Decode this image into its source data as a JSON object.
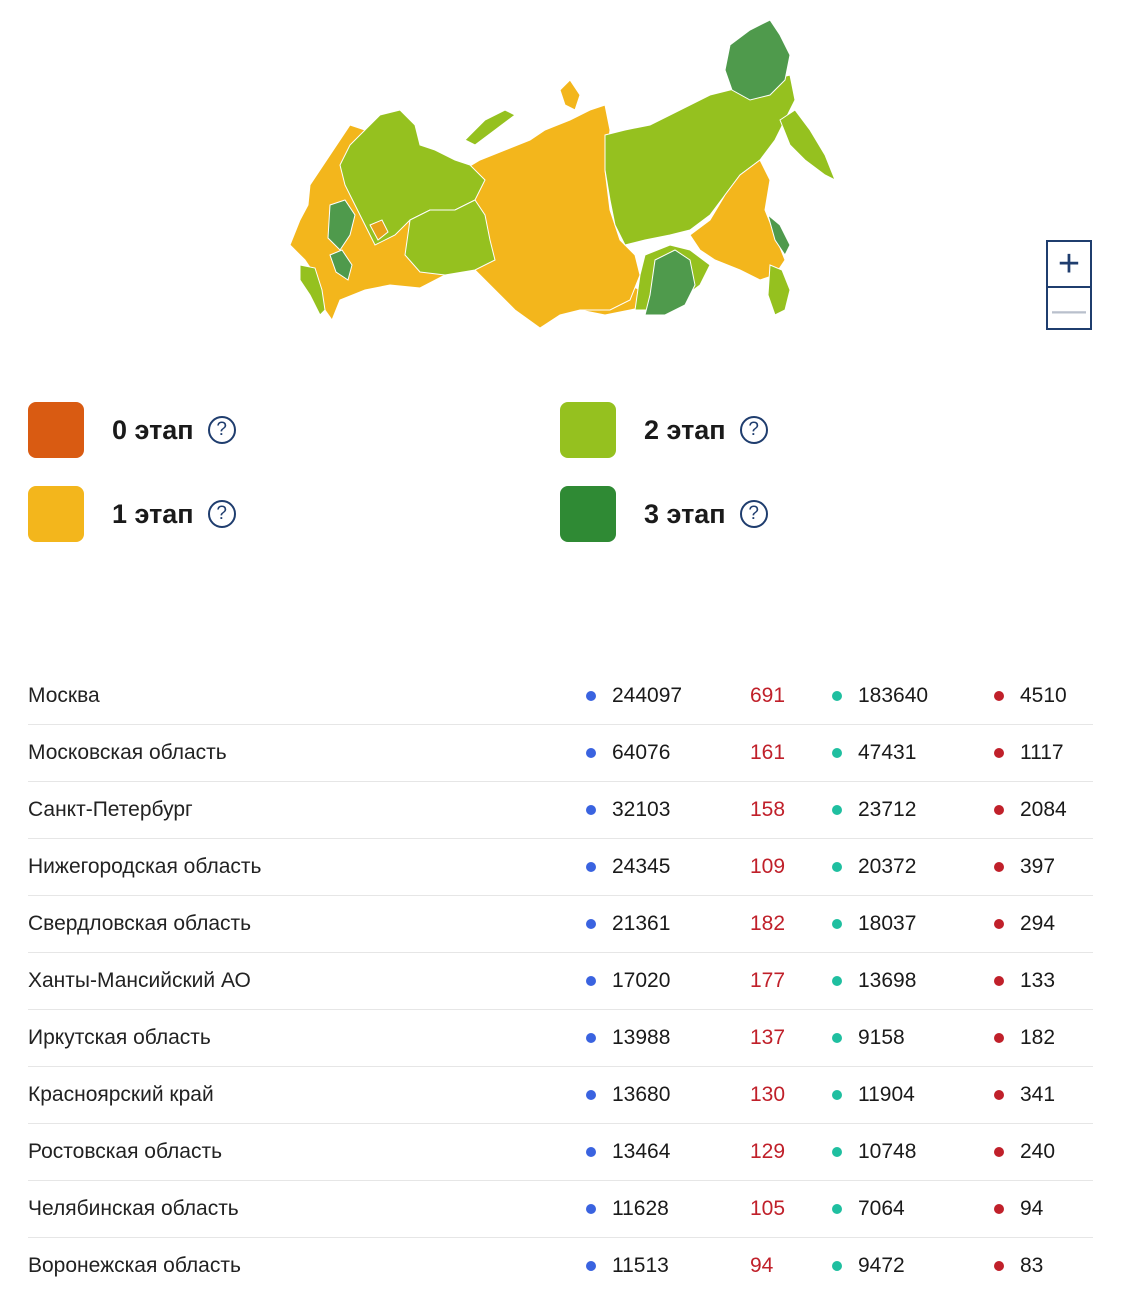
{
  "colors": {
    "stage0": "#d95b12",
    "stage1": "#f3b61c",
    "stage2": "#95c11f",
    "stage3": "#2f8a34",
    "dot_cases": "#3a63e0",
    "dot_recovered": "#1fbfa0",
    "dot_deaths": "#c0202a",
    "new_cases": "#c0202a"
  },
  "map": {
    "icon": "russia-map"
  },
  "zoom": {
    "plus": "+",
    "minus": "—"
  },
  "legend": [
    {
      "label": "0 этап",
      "help": "?"
    },
    {
      "label": "1 этап",
      "help": "?"
    },
    {
      "label": "2 этап",
      "help": "?"
    },
    {
      "label": "3 этап",
      "help": "?"
    }
  ],
  "regions": [
    {
      "name": "Москва",
      "cases": "244097",
      "new": "691",
      "recovered": "183640",
      "deaths": "4510"
    },
    {
      "name": "Московская область",
      "cases": "64076",
      "new": "161",
      "recovered": "47431",
      "deaths": "1117"
    },
    {
      "name": "Санкт-Петербург",
      "cases": "32103",
      "new": "158",
      "recovered": "23712",
      "deaths": "2084"
    },
    {
      "name": "Нижегородская область",
      "cases": "24345",
      "new": "109",
      "recovered": "20372",
      "deaths": "397"
    },
    {
      "name": "Свердловская область",
      "cases": "21361",
      "new": "182",
      "recovered": "18037",
      "deaths": "294"
    },
    {
      "name": "Ханты-Мансийский АО",
      "cases": "17020",
      "new": "177",
      "recovered": "13698",
      "deaths": "133"
    },
    {
      "name": "Иркутская область",
      "cases": "13988",
      "new": "137",
      "recovered": "9158",
      "deaths": "182"
    },
    {
      "name": "Красноярский край",
      "cases": "13680",
      "new": "130",
      "recovered": "11904",
      "deaths": "341"
    },
    {
      "name": "Ростовская область",
      "cases": "13464",
      "new": "129",
      "recovered": "10748",
      "deaths": "240"
    },
    {
      "name": "Челябинская область",
      "cases": "11628",
      "new": "105",
      "recovered": "7064",
      "deaths": "94"
    },
    {
      "name": "Воронежская область",
      "cases": "11513",
      "new": "94",
      "recovered": "9472",
      "deaths": "83"
    }
  ]
}
